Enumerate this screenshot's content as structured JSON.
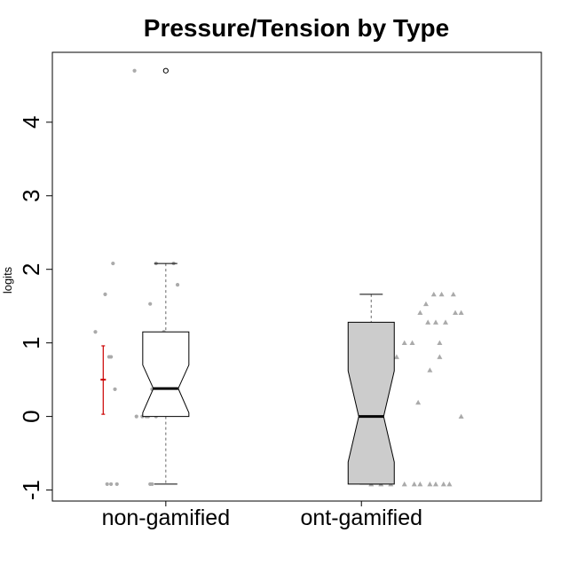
{
  "chart_data": {
    "type": "box",
    "title": "Pressure/Tension by Type",
    "xlabel": "",
    "ylabel": "logits",
    "ylim": [
      -1.15,
      4.95
    ],
    "yticks": [
      -1,
      0,
      1,
      2,
      3,
      4
    ],
    "grid": false,
    "categories": [
      "non-gamified",
      "ont-gamified"
    ],
    "colors": {
      "box1_fill": "#ffffff",
      "box2_fill": "#cccccc",
      "points": "#aaaaaa",
      "ci1": "#cc0000",
      "ci2": "#0000aa"
    },
    "boxes": [
      {
        "name": "non-gamified",
        "whisker_low": -0.92,
        "q1": 0.0,
        "median": 0.38,
        "q3": 1.15,
        "whisker_high": 2.08,
        "notch_low": 0.05,
        "notch_high": 0.7,
        "outliers": [
          4.7
        ],
        "fill": "#ffffff"
      },
      {
        "name": "ont-gamified",
        "whisker_low": -0.92,
        "q1": -0.92,
        "median": 0.0,
        "q3": 1.28,
        "whisker_high": 1.66,
        "notch_low": -0.62,
        "notch_high": 0.62,
        "outliers": [],
        "fill": "#cccccc"
      }
    ],
    "mean_ci": [
      {
        "name": "non-gamified",
        "mean": 0.5,
        "low": 0.03,
        "high": 0.96,
        "color": "#cc0000"
      },
      {
        "name": "ont-gamified",
        "mean": 0.19,
        "low": -0.46,
        "high": 0.37,
        "color": "#0000aa"
      }
    ],
    "jitter_points": [
      {
        "group": "non-gamified",
        "shape": "circle",
        "points": [
          [
            0.7,
            -0.92
          ],
          [
            0.72,
            -0.92
          ],
          [
            0.75,
            -0.92
          ],
          [
            0.92,
            -0.92
          ],
          [
            0.93,
            -0.92
          ],
          [
            0.85,
            0.0
          ],
          [
            0.88,
            0.0
          ],
          [
            0.9,
            0.0
          ],
          [
            0.91,
            0.0
          ],
          [
            0.95,
            0.0
          ],
          [
            0.74,
            0.37
          ],
          [
            0.93,
            0.37
          ],
          [
            1.03,
            0.37
          ],
          [
            0.95,
            0.63
          ],
          [
            0.71,
            0.81
          ],
          [
            0.72,
            0.81
          ],
          [
            0.89,
            0.81
          ],
          [
            1.05,
            0.81
          ],
          [
            0.95,
            1.0
          ],
          [
            1.03,
            1.0
          ],
          [
            0.64,
            1.15
          ],
          [
            0.99,
            1.15
          ],
          [
            0.92,
            1.53
          ],
          [
            0.69,
            1.66
          ],
          [
            1.06,
            1.79
          ],
          [
            0.73,
            2.08
          ],
          [
            0.95,
            2.08
          ],
          [
            1.04,
            2.08
          ],
          [
            0.84,
            4.7
          ]
        ]
      },
      {
        "group": "ont-gamified",
        "shape": "triangle",
        "points": [
          [
            2.05,
            -0.92
          ],
          [
            2.1,
            -0.92
          ],
          [
            2.15,
            -0.92
          ],
          [
            2.22,
            -0.92
          ],
          [
            2.27,
            -0.92
          ],
          [
            2.3,
            -0.92
          ],
          [
            2.35,
            -0.92
          ],
          [
            2.38,
            -0.92
          ],
          [
            2.42,
            -0.92
          ],
          [
            2.45,
            -0.92
          ],
          [
            2.51,
            0.0
          ],
          [
            2.29,
            0.19
          ],
          [
            2.35,
            0.63
          ],
          [
            2.07,
            0.81
          ],
          [
            2.18,
            0.81
          ],
          [
            2.4,
            0.81
          ],
          [
            2.22,
            1.0
          ],
          [
            2.26,
            1.0
          ],
          [
            2.4,
            1.0
          ],
          [
            2.34,
            1.28
          ],
          [
            2.38,
            1.28
          ],
          [
            2.43,
            1.28
          ],
          [
            2.3,
            1.41
          ],
          [
            2.48,
            1.41
          ],
          [
            2.51,
            1.41
          ],
          [
            2.33,
            1.53
          ],
          [
            2.37,
            1.66
          ],
          [
            2.41,
            1.66
          ],
          [
            2.47,
            1.66
          ]
        ]
      }
    ]
  }
}
